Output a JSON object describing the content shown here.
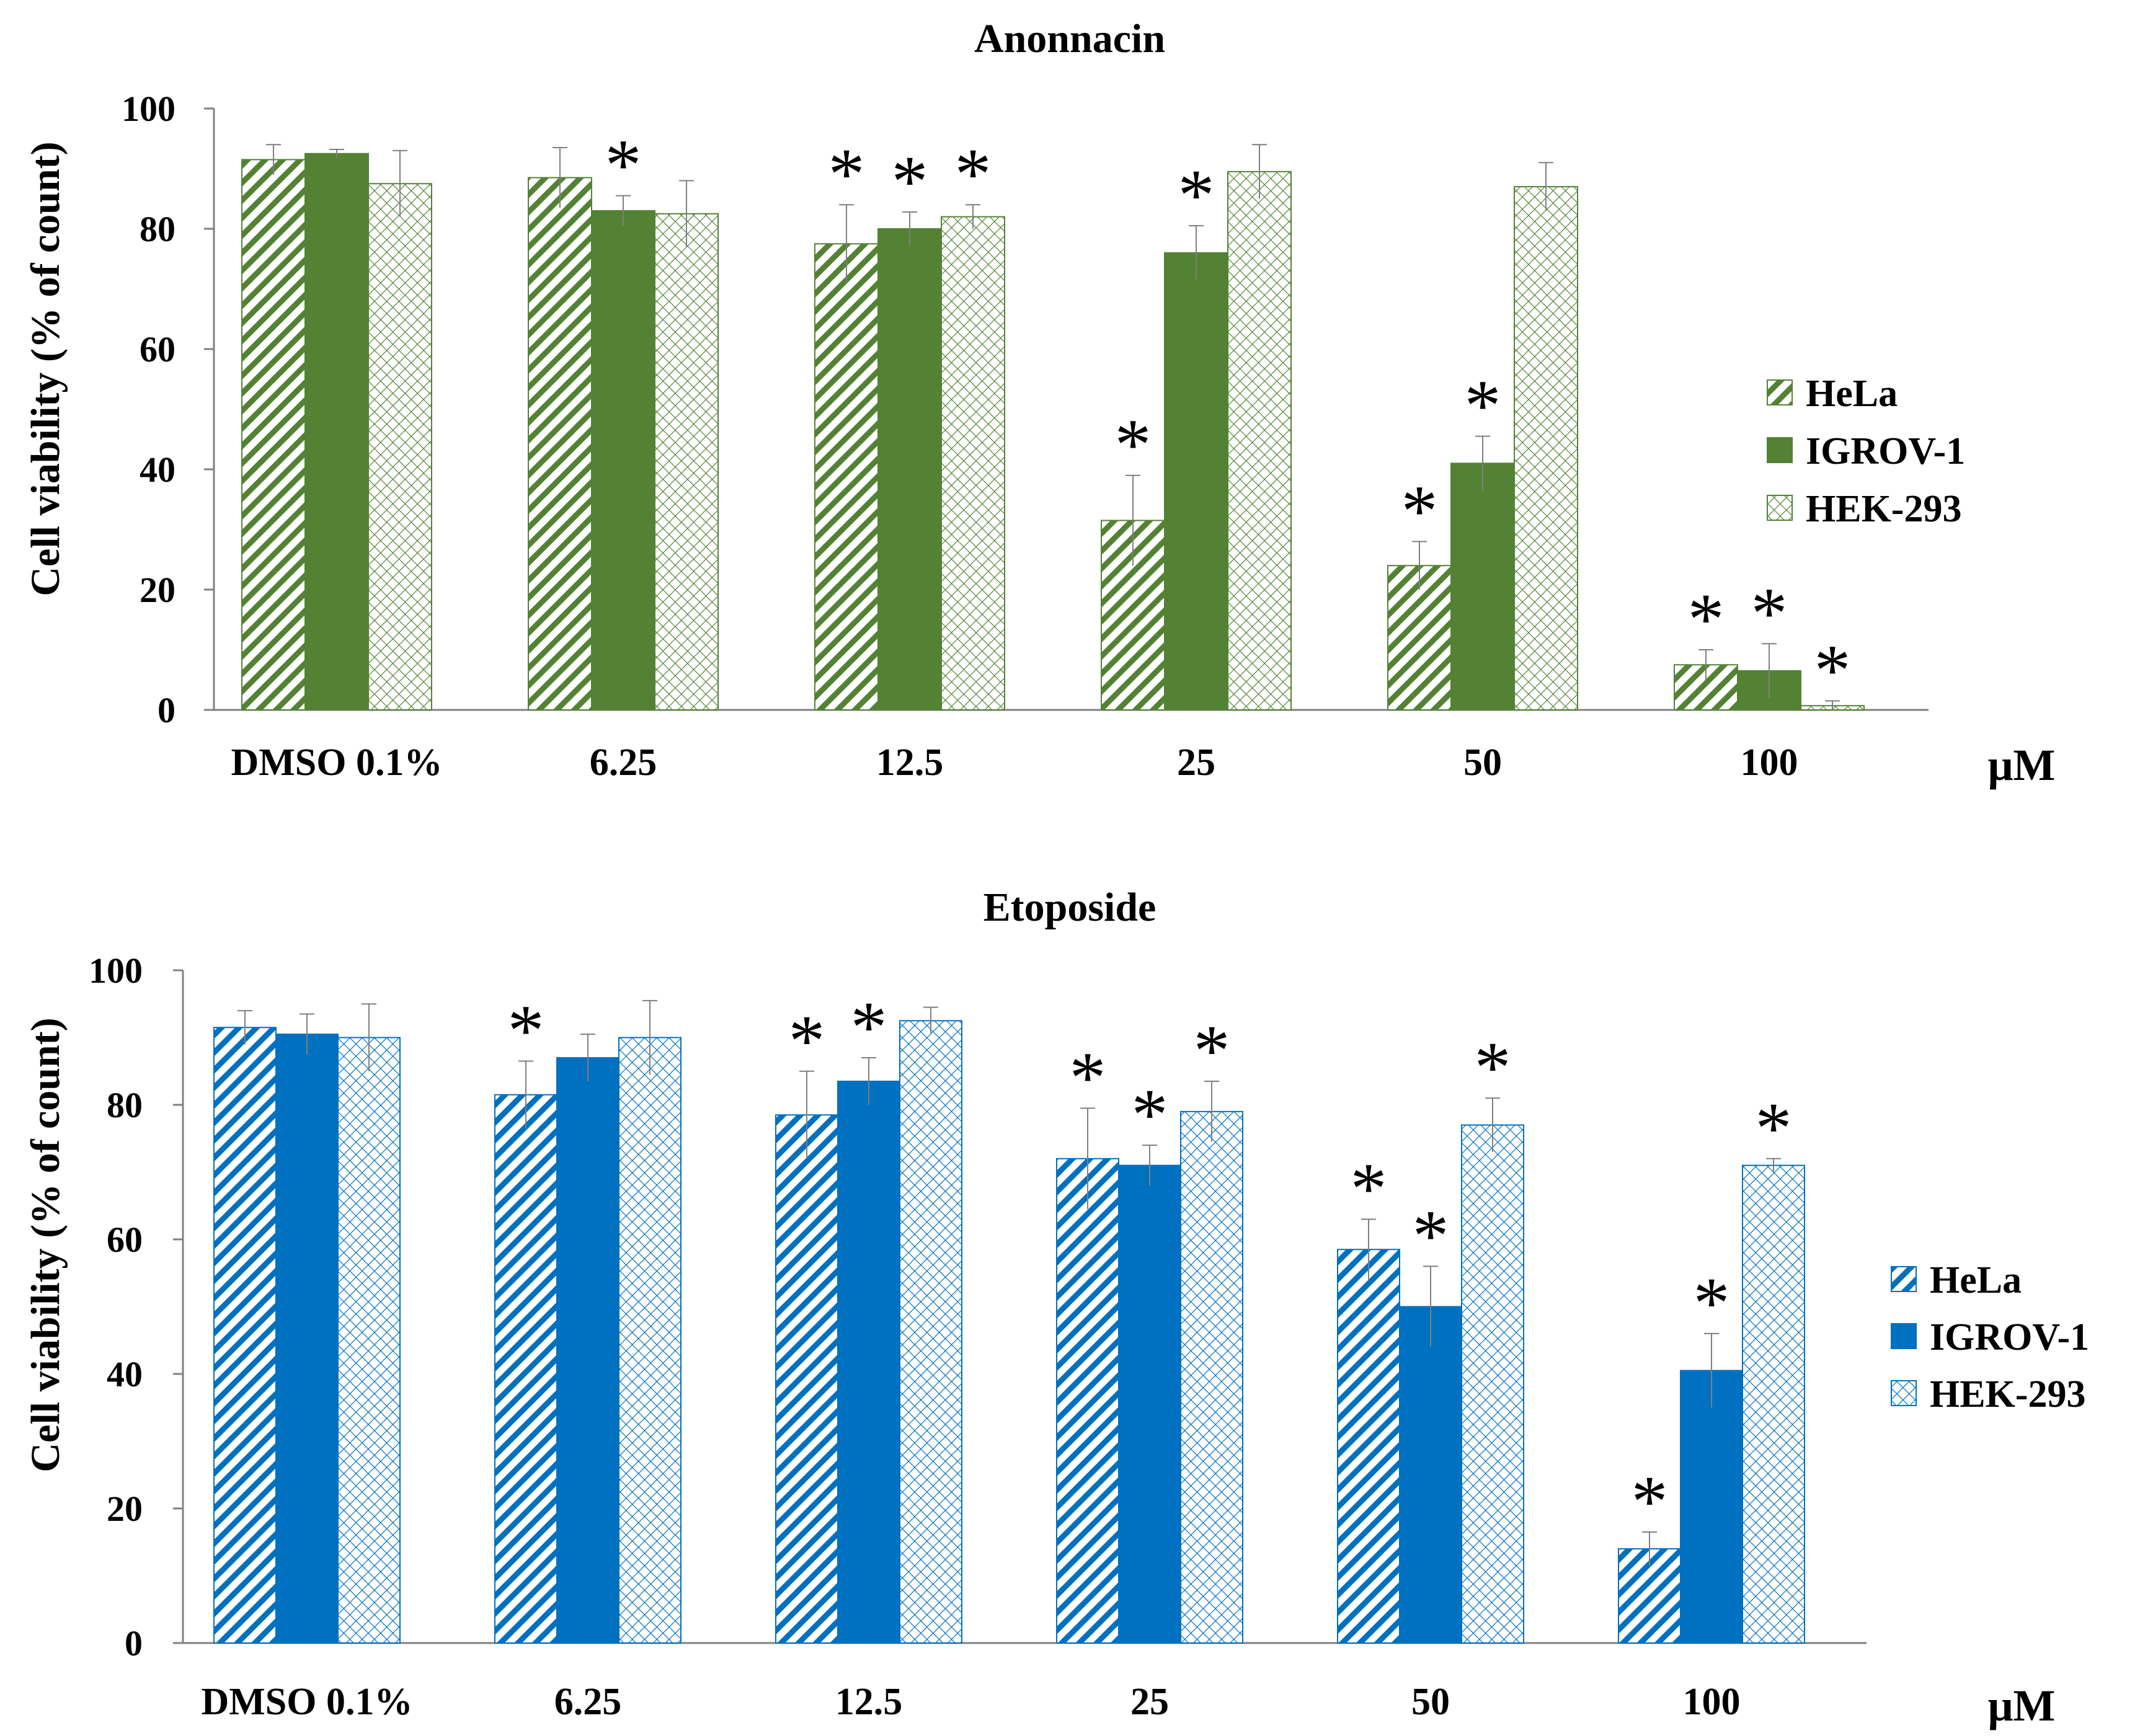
{
  "chart_data": [
    {
      "type": "bar",
      "title": "Anonnacin",
      "xlabel": "",
      "ylabel": "Cell viability (% of count)",
      "unit_label": "μM",
      "categories": [
        "DMSO 0.1%",
        "6.25",
        "12.5",
        "25",
        "50",
        "100"
      ],
      "ylim": [
        0,
        100
      ],
      "yticks": [
        "0",
        "20",
        "40",
        "60",
        "80",
        "100"
      ],
      "series": [
        {
          "name": "HeLa",
          "pattern": "diagonal",
          "color": "#548235",
          "values": [
            91.5,
            88.5,
            77.5,
            31.5,
            24,
            7.5
          ],
          "errors": [
            2.5,
            5,
            6.5,
            7.5,
            4,
            2.5
          ],
          "significant": [
            false,
            false,
            true,
            true,
            true,
            true
          ]
        },
        {
          "name": "IGROV-1",
          "pattern": "solid",
          "color": "#548235",
          "values": [
            92.5,
            83,
            80,
            76,
            41,
            6.5
          ],
          "errors": [
            0.7,
            2.5,
            2.8,
            4.5,
            4.5,
            4.5
          ],
          "significant": [
            false,
            true,
            true,
            true,
            true,
            true
          ]
        },
        {
          "name": "HEK-293",
          "pattern": "cross",
          "color": "#548235",
          "values": [
            87.5,
            82.5,
            82,
            89.5,
            87,
            0.7
          ],
          "errors": [
            5.5,
            5.5,
            2,
            4.5,
            4,
            0.8
          ],
          "significant": [
            false,
            false,
            true,
            false,
            false,
            true
          ]
        }
      ],
      "legend": "right",
      "significance_marker": "*"
    },
    {
      "type": "bar",
      "title": "Etoposide",
      "xlabel": "",
      "ylabel": "Cell viability (% of count)",
      "unit_label": "μM",
      "categories": [
        "DMSO 0.1%",
        "6.25",
        "12.5",
        "25",
        "50",
        "100"
      ],
      "ylim": [
        0,
        100
      ],
      "yticks": [
        "0",
        "20",
        "40",
        "60",
        "80",
        "100"
      ],
      "series": [
        {
          "name": "HeLa",
          "pattern": "diagonal",
          "color": "#0070C0",
          "values": [
            91.5,
            81.5,
            78.5,
            72,
            58.5,
            14
          ],
          "errors": [
            2.5,
            5,
            6.5,
            7.5,
            4.5,
            2.5
          ],
          "significant": [
            false,
            true,
            true,
            true,
            true,
            true
          ]
        },
        {
          "name": "IGROV-1",
          "pattern": "solid",
          "color": "#0070C0",
          "values": [
            90.5,
            87,
            83.5,
            71,
            50,
            40.5
          ],
          "errors": [
            3,
            3.5,
            3.5,
            3,
            6,
            5.5
          ],
          "significant": [
            false,
            false,
            true,
            true,
            true,
            true
          ]
        },
        {
          "name": "HEK-293",
          "pattern": "cross",
          "color": "#0070C0",
          "values": [
            90,
            90,
            92.5,
            79,
            77,
            71
          ],
          "errors": [
            5,
            5.5,
            2,
            4.5,
            4,
            1
          ],
          "significant": [
            false,
            false,
            false,
            true,
            true,
            true
          ]
        }
      ],
      "legend": "right",
      "significance_marker": "*"
    }
  ]
}
